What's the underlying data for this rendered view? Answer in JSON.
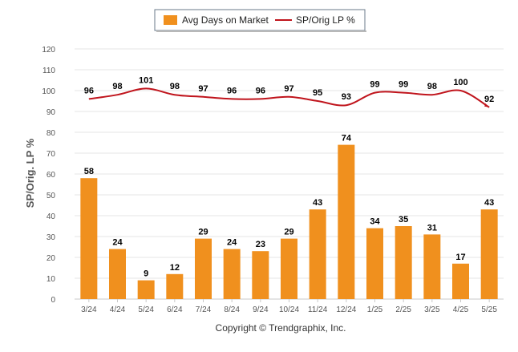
{
  "legend": {
    "bar_label": "Avg Days on Market",
    "line_label": "SP/Orig LP %"
  },
  "footer": {
    "copyright": "Copyright © Trendgraphix, Inc."
  },
  "colors": {
    "bar": "#f0901e",
    "line": "#c0141c",
    "grid": "#e6e6e6",
    "axis_text": "#555555",
    "label_text": "#000000"
  },
  "chart_data": {
    "type": "bar",
    "categories": [
      "3/24",
      "4/24",
      "5/24",
      "6/24",
      "7/24",
      "8/24",
      "9/24",
      "10/24",
      "11/24",
      "12/24",
      "1/25",
      "2/25",
      "3/25",
      "4/25",
      "5/25"
    ],
    "series": [
      {
        "name": "Avg Days on Market",
        "type": "bar",
        "values": [
          58,
          24,
          9,
          12,
          29,
          24,
          23,
          29,
          43,
          74,
          34,
          35,
          31,
          17,
          43
        ]
      },
      {
        "name": "SP/Orig LP %",
        "type": "line",
        "values": [
          96,
          98,
          101,
          98,
          97,
          96,
          96,
          97,
          95,
          93,
          99,
          99,
          98,
          100,
          92
        ]
      }
    ],
    "ylabel": "SP/Orig. LP %",
    "xlabel": "",
    "ylim": [
      0,
      120
    ],
    "yticks": [
      0,
      10,
      20,
      30,
      40,
      50,
      60,
      70,
      80,
      90,
      100,
      110,
      120
    ],
    "grid": true,
    "legend_position": "top-center"
  }
}
